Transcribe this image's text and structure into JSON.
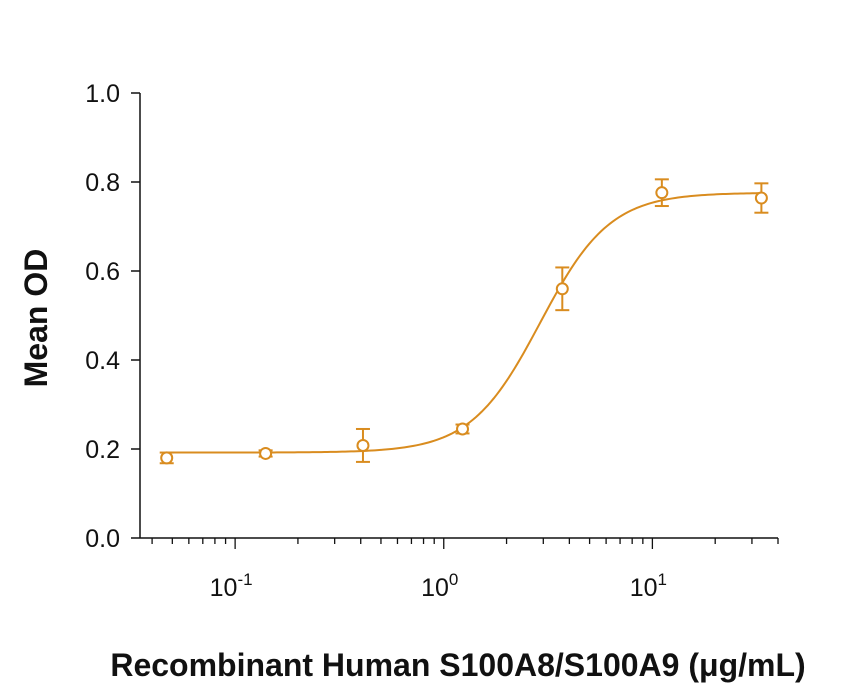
{
  "chart_data": {
    "type": "scatter",
    "title": "",
    "xlabel": "Recombinant Human S100A8/S100A9 (μg/mL)",
    "ylabel": "Mean OD",
    "x_scale": "log",
    "xlim": [
      0.035,
      40
    ],
    "ylim": [
      0,
      1.0
    ],
    "y_ticks": [
      "0.0",
      "0.2",
      "0.4",
      "0.6",
      "0.8",
      "1.0"
    ],
    "x_ticks": [
      {
        "base": "10",
        "exp": "-1",
        "value": 0.1
      },
      {
        "base": "10",
        "exp": "0",
        "value": 1
      },
      {
        "base": "10",
        "exp": "1",
        "value": 10
      }
    ],
    "grid": false,
    "legend": "none",
    "color": "#d98c1f",
    "series": [
      {
        "x": [
          0.047,
          0.14,
          0.41,
          1.23,
          3.7,
          11.1,
          33.3
        ],
        "y": [
          0.18,
          0.19,
          0.208,
          0.245,
          0.56,
          0.776,
          0.764
        ],
        "err": [
          0.012,
          0.007,
          0.037,
          0.01,
          0.048,
          0.03,
          0.033
        ]
      }
    ],
    "fit_curve": {
      "model": "4PL",
      "bottom": 0.192,
      "top": 0.776,
      "ec50": 2.9,
      "hill": 2.6
    }
  }
}
